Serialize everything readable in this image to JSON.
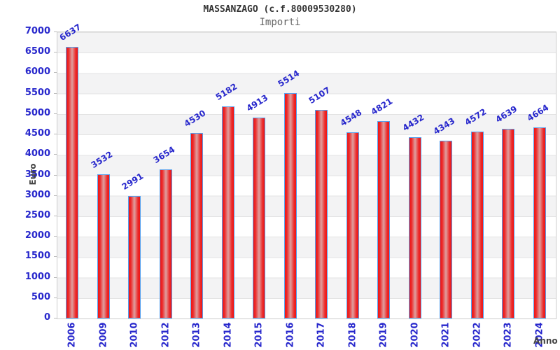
{
  "header": {
    "title": "MASSANZAGO (c.f.80009530280)",
    "subtitle": "Importi"
  },
  "chart_data": {
    "type": "bar",
    "title": "MASSANZAGO (c.f.80009530280)",
    "subtitle": "Importi",
    "xlabel": "Anno",
    "ylabel": "Euro",
    "categories": [
      "2006",
      "2009",
      "2010",
      "2012",
      "2013",
      "2014",
      "2015",
      "2016",
      "2017",
      "2018",
      "2019",
      "2020",
      "2021",
      "2022",
      "2023",
      "2024"
    ],
    "values": [
      6637,
      3532,
      2991,
      3654,
      4530,
      5182,
      4913,
      5514,
      5107,
      4548,
      4821,
      4432,
      4343,
      4572,
      4639,
      4664
    ],
    "ylim": [
      0,
      7000
    ],
    "ytick_step": 500,
    "yticks": [
      0,
      500,
      1000,
      1500,
      2000,
      2500,
      3000,
      3500,
      4000,
      4500,
      5000,
      5500,
      6000,
      6500,
      7000
    ],
    "grid": true,
    "legend": "none",
    "colors": {
      "bar_edge": "#ee1414",
      "bar_center": "#dfa0a0",
      "bar_border": "#55a0ee",
      "label_blue": "#2727cc",
      "band_gray": "#f3f3f4",
      "band_white": "#ffffff",
      "plot_border": "#cccccc",
      "title_color": "#333333",
      "subtitle_color": "#666666",
      "axis_title_color": "#444444"
    }
  }
}
